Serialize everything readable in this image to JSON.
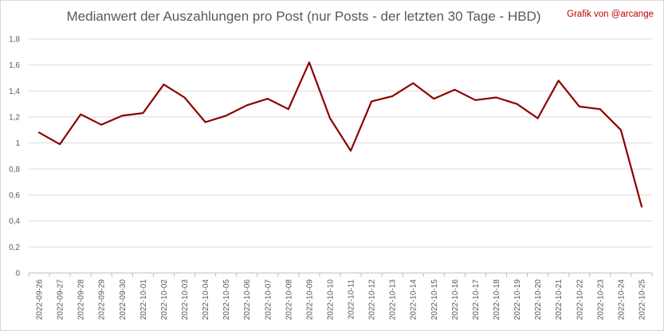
{
  "chart_data": {
    "type": "line",
    "title": "Medianwert der Auszahlungen pro Post (nur Posts - der letzten 30 Tage - HBD)",
    "credit": "Grafik von @arcange",
    "xlabel": "",
    "ylabel": "",
    "ylim": [
      0,
      1.8
    ],
    "ytick_labels": [
      "0",
      "0,2",
      "0,4",
      "0,6",
      "0,8",
      "1",
      "1,2",
      "1,4",
      "1,6",
      "1,8"
    ],
    "grid": true,
    "legend": "none",
    "categories": [
      "2022-09-26",
      "2022-09-27",
      "2022-09-28",
      "2022-09-29",
      "2022-09-30",
      "2022-10-01",
      "2022-10-02",
      "2022-10-03",
      "2022-10-04",
      "2022-10-05",
      "2022-10-06",
      "2022-10-07",
      "2022-10-08",
      "2022-10-09",
      "2022-10-10",
      "2022-10-11",
      "2022-10-12",
      "2022-10-13",
      "2022-10-14",
      "2022-10-15",
      "2022-10-16",
      "2022-10-17",
      "2022-10-18",
      "2022-10-19",
      "2022-10-20",
      "2022-10-21",
      "2022-10-22",
      "2022-10-23",
      "2022-10-24",
      "2022-10-25"
    ],
    "series": [
      {
        "values": [
          1.08,
          0.99,
          1.22,
          1.14,
          1.21,
          1.23,
          1.45,
          1.35,
          1.16,
          1.21,
          1.29,
          1.34,
          1.26,
          1.62,
          1.19,
          0.94,
          1.32,
          1.36,
          1.46,
          1.34,
          1.41,
          1.33,
          1.35,
          1.3,
          1.19,
          1.48,
          1.28,
          1.26,
          1.1,
          0.51
        ],
        "color": "#8b0000"
      }
    ]
  }
}
